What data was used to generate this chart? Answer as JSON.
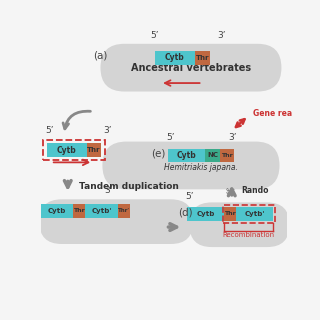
{
  "bg_color": "#f5f5f5",
  "oval_color": "#d4d4d4",
  "cytb_color": "#4ec5cc",
  "thr_color": "#c06840",
  "nc_color": "#3aaa8a",
  "arrow_red": "#cc3333",
  "arrow_gray": "#888888",
  "dashed_red": "#cc3333",
  "label_a": "(a)",
  "label_e": "(e)",
  "label_d": "(d)",
  "title_a": "Ancestral vertebrates",
  "title_e": "Hemitriakis japana.",
  "title_tandem": "Tandem duplication",
  "title_random": "Rando",
  "title_recomb": "Recombination",
  "title_generea": "Gene rea",
  "five_prime": "5’",
  "three_prime": "3’"
}
